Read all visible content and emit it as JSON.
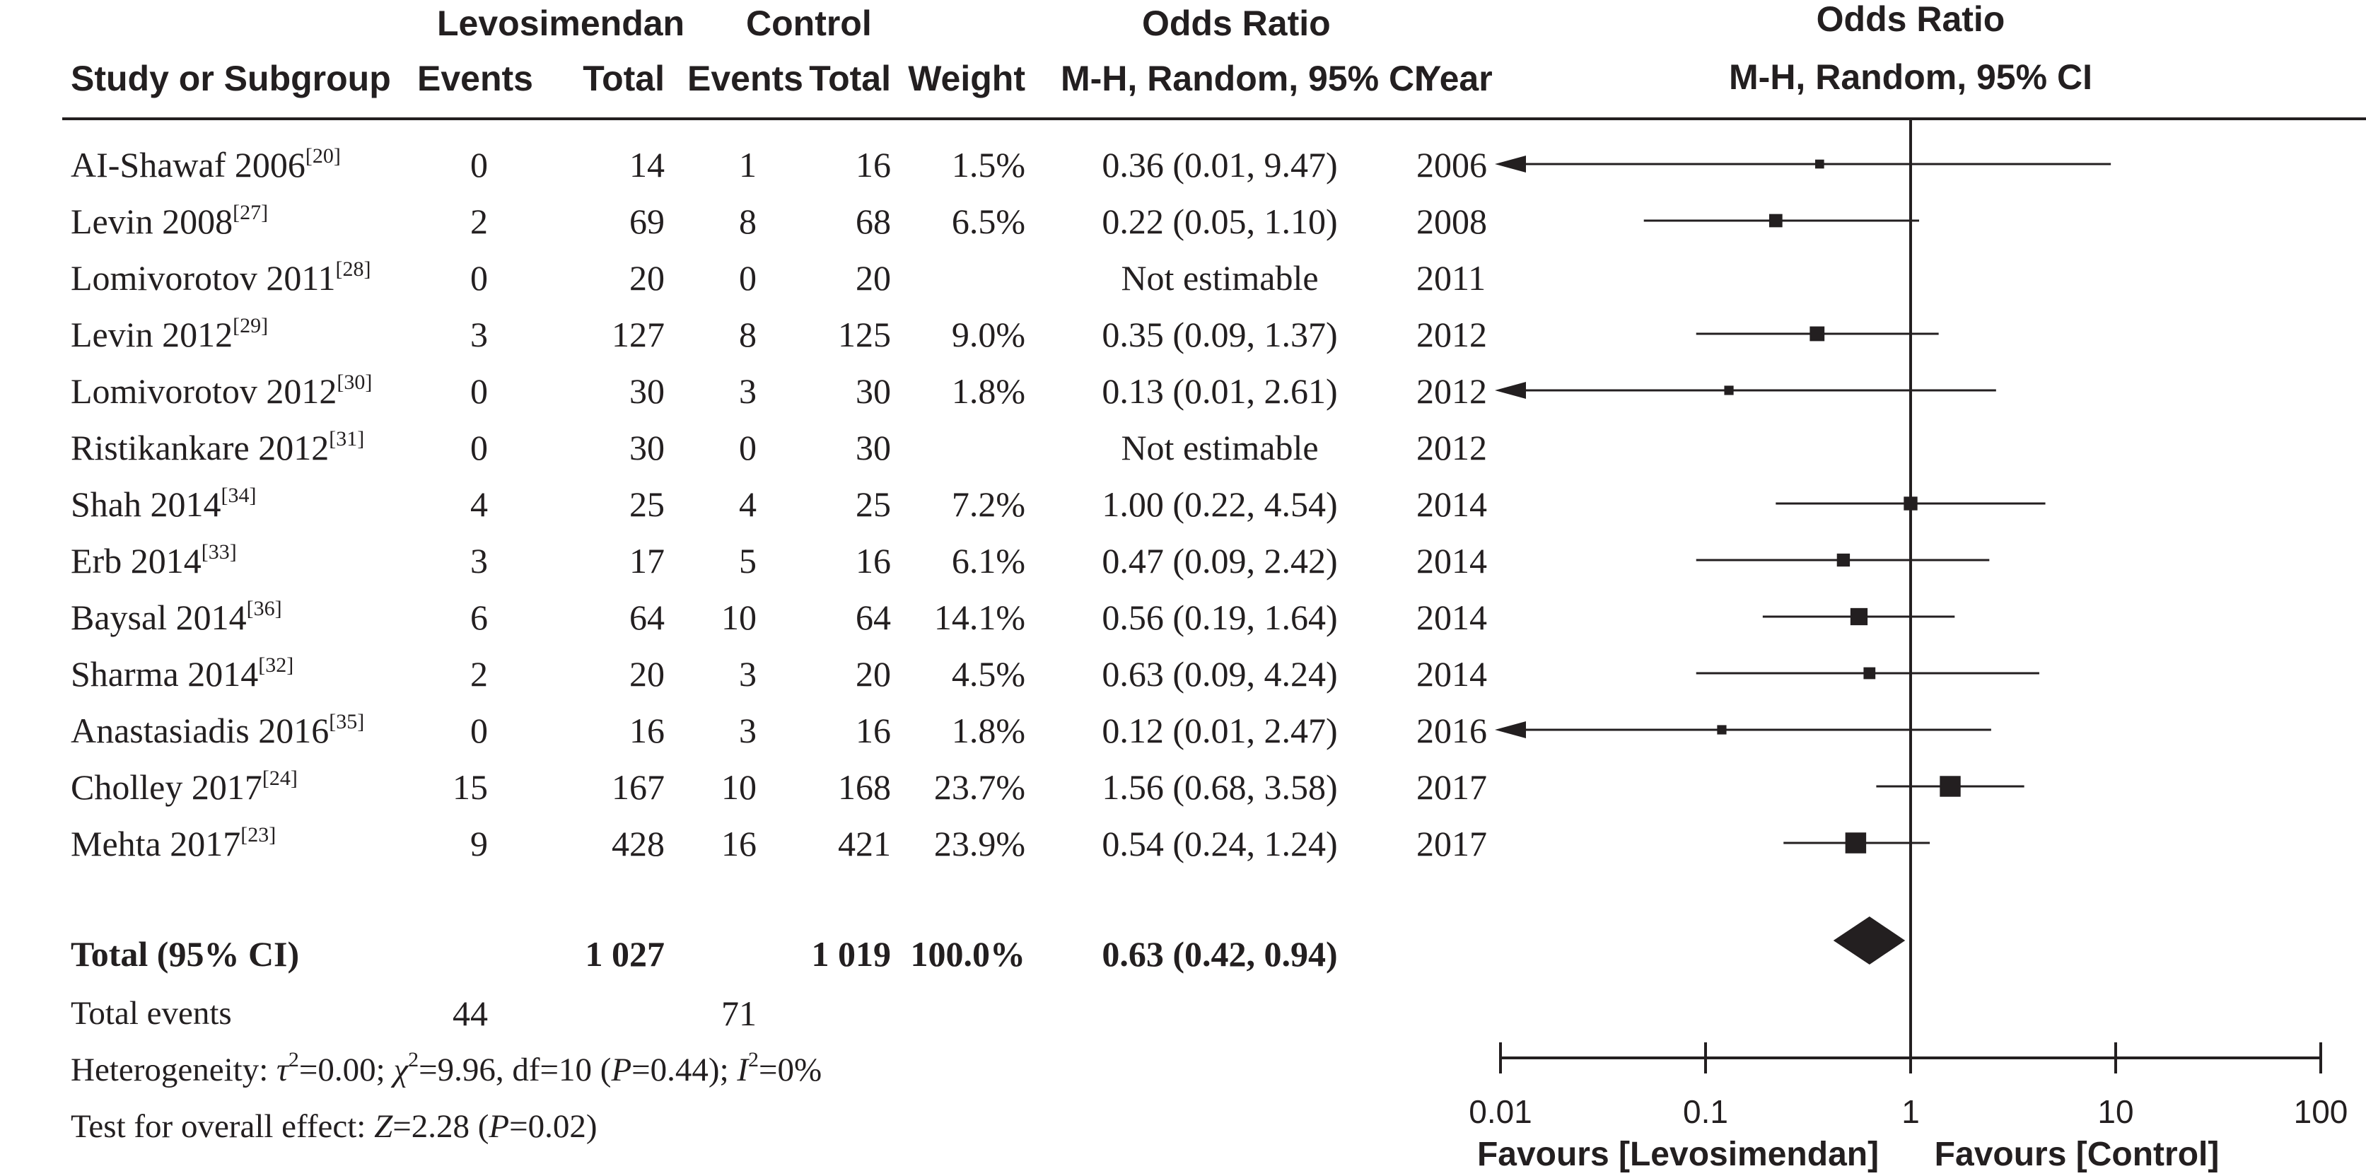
{
  "headers": {
    "group_lev": "Levosimendan",
    "group_ctrl": "Control",
    "group_or": "Odds Ratio",
    "study": "Study or Subgroup",
    "events": "Events",
    "total": "Total",
    "weight": "Weight",
    "method": "M-H, Random, 95% CI",
    "year": "Year",
    "plot_title": "Odds Ratio",
    "plot_method": "M-H, Random, 95% CI"
  },
  "studies": [
    {
      "name": "AI-Shawaf 2006",
      "ref": "[20]",
      "ev_l": "0",
      "tot_l": "14",
      "ev_c": "1",
      "tot_c": "16",
      "weight": "1.5%",
      "or_text": "0.36 (0.01, 9.47)",
      "year": "2006"
    },
    {
      "name": "Levin 2008",
      "ref": "[27]",
      "ev_l": "2",
      "tot_l": "69",
      "ev_c": "8",
      "tot_c": "68",
      "weight": "6.5%",
      "or_text": "0.22 (0.05, 1.10)",
      "year": "2008"
    },
    {
      "name": "Lomivorotov 2011",
      "ref": "[28]",
      "ev_l": "0",
      "tot_l": "20",
      "ev_c": "0",
      "tot_c": "20",
      "weight": "",
      "or_text": "Not estimable",
      "year": "2011"
    },
    {
      "name": "Levin 2012",
      "ref": "[29]",
      "ev_l": "3",
      "tot_l": "127",
      "ev_c": "8",
      "tot_c": "125",
      "weight": "9.0%",
      "or_text": "0.35 (0.09, 1.37)",
      "year": "2012"
    },
    {
      "name": "Lomivorotov 2012",
      "ref": "[30]",
      "ev_l": "0",
      "tot_l": "30",
      "ev_c": "3",
      "tot_c": "30",
      "weight": "1.8%",
      "or_text": "0.13 (0.01, 2.61)",
      "year": "2012"
    },
    {
      "name": "Ristikankare 2012",
      "ref": "[31]",
      "ev_l": "0",
      "tot_l": "30",
      "ev_c": "0",
      "tot_c": "30",
      "weight": "",
      "or_text": "Not estimable",
      "year": "2012"
    },
    {
      "name": "Shah 2014",
      "ref": "[34]",
      "ev_l": "4",
      "tot_l": "25",
      "ev_c": "4",
      "tot_c": "25",
      "weight": "7.2%",
      "or_text": "1.00 (0.22, 4.54)",
      "year": "2014"
    },
    {
      "name": "Erb 2014",
      "ref": "[33]",
      "ev_l": "3",
      "tot_l": "17",
      "ev_c": "5",
      "tot_c": "16",
      "weight": "6.1%",
      "or_text": "0.47 (0.09, 2.42)",
      "year": "2014"
    },
    {
      "name": "Baysal 2014",
      "ref": "[36]",
      "ev_l": "6",
      "tot_l": "64",
      "ev_c": "10",
      "tot_c": "64",
      "weight": "14.1%",
      "or_text": "0.56 (0.19, 1.64)",
      "year": "2014"
    },
    {
      "name": "Sharma 2014",
      "ref": "[32]",
      "ev_l": "2",
      "tot_l": "20",
      "ev_c": "3",
      "tot_c": "20",
      "weight": "4.5%",
      "or_text": "0.63 (0.09, 4.24)",
      "year": "2014"
    },
    {
      "name": "Anastasiadis 2016",
      "ref": "[35]",
      "ev_l": "0",
      "tot_l": "16",
      "ev_c": "3",
      "tot_c": "16",
      "weight": "1.8%",
      "or_text": "0.12 (0.01, 2.47)",
      "year": "2016"
    },
    {
      "name": "Cholley 2017",
      "ref": "[24]",
      "ev_l": "15",
      "tot_l": "167",
      "ev_c": "10",
      "tot_c": "168",
      "weight": "23.7%",
      "or_text": "1.56 (0.68, 3.58)",
      "year": "2017"
    },
    {
      "name": "Mehta 2017",
      "ref": "[23]",
      "ev_l": "9",
      "tot_l": "428",
      "ev_c": "16",
      "tot_c": "421",
      "weight": "23.9%",
      "or_text": "0.54 (0.24, 1.24)",
      "year": "2017"
    }
  ],
  "total": {
    "label": "Total (95% CI)",
    "tot_l": "1 027",
    "tot_c": "1 019",
    "weight": "100.0%",
    "or_text": "0.63 (0.42, 0.94)"
  },
  "total_events": {
    "label": "Total events",
    "ev_l": "44",
    "ev_c": "71"
  },
  "heterogeneity": {
    "label": "Heterogeneity: ",
    "tau_sym": "τ",
    "tau_val": "=0.00; ",
    "chi_sym": "χ",
    "chi_val": "=9.96, df=10 (",
    "p_sym": "P",
    "p_val": "=0.44); ",
    "i_sym": "I",
    "i_val": "=0%"
  },
  "overall": {
    "label": "Test for overall effect: ",
    "z_sym": "Z",
    "z_val": "=2.28 (",
    "p_sym": "P",
    "p_val": "=0.02)"
  },
  "chart_data": {
    "type": "forest",
    "scale": "log",
    "xlim": [
      0.01,
      100
    ],
    "ticks": [
      0.01,
      0.1,
      1,
      10,
      100
    ],
    "tick_labels": [
      "0.01",
      "0.1",
      "1",
      "10",
      "100"
    ],
    "favours_left": "Favours [Levosimendan]",
    "favours_right": "Favours [Control]",
    "rows": [
      {
        "or": 0.36,
        "lo": 0.01,
        "hi": 9.47,
        "w": 1.5
      },
      {
        "or": 0.22,
        "lo": 0.05,
        "hi": 1.1,
        "w": 6.5
      },
      null,
      {
        "or": 0.35,
        "lo": 0.09,
        "hi": 1.37,
        "w": 9.0
      },
      {
        "or": 0.13,
        "lo": 0.01,
        "hi": 2.61,
        "w": 1.8
      },
      null,
      {
        "or": 1.0,
        "lo": 0.22,
        "hi": 4.54,
        "w": 7.2
      },
      {
        "or": 0.47,
        "lo": 0.09,
        "hi": 2.42,
        "w": 6.1
      },
      {
        "or": 0.56,
        "lo": 0.19,
        "hi": 1.64,
        "w": 14.1
      },
      {
        "or": 0.63,
        "lo": 0.09,
        "hi": 4.24,
        "w": 4.5
      },
      {
        "or": 0.12,
        "lo": 0.01,
        "hi": 2.47,
        "w": 1.8
      },
      {
        "or": 1.56,
        "lo": 0.68,
        "hi": 3.58,
        "w": 23.7
      },
      {
        "or": 0.54,
        "lo": 0.24,
        "hi": 1.24,
        "w": 23.9
      }
    ],
    "pooled": {
      "or": 0.63,
      "lo": 0.42,
      "hi": 0.94
    }
  }
}
